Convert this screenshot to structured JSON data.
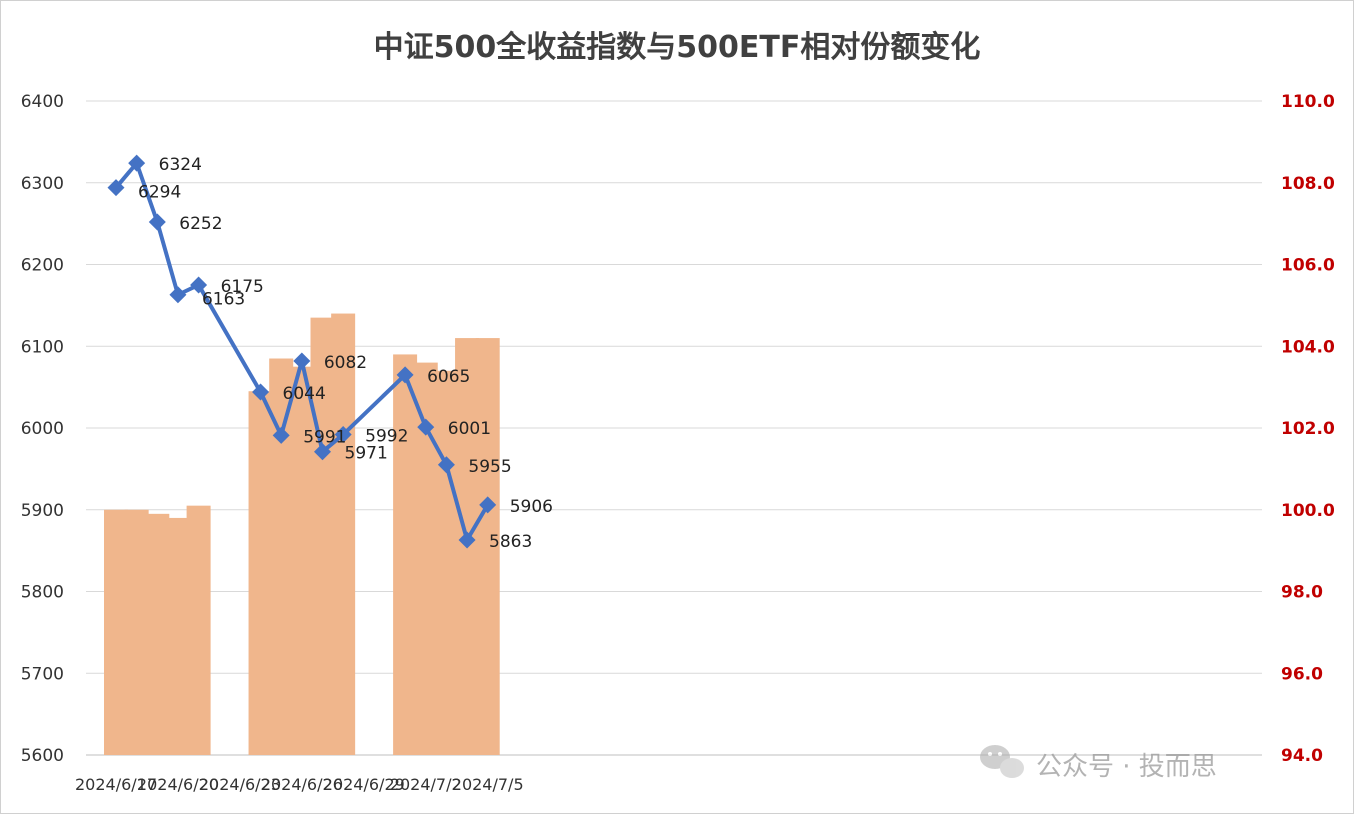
{
  "chart_data": {
    "type": "bar+line",
    "title": "中证500全收益指数与500ETF相对份额变化",
    "x_tick_labels": [
      "2024/6/17",
      "2024/6/20",
      "2024/6/23",
      "2024/6/26",
      "2024/6/29",
      "2024/7/2",
      "2024/7/5"
    ],
    "left_axis": {
      "ylim": [
        5600,
        6400
      ],
      "ticks": [
        5600,
        5700,
        5800,
        5900,
        6000,
        6100,
        6200,
        6300,
        6400
      ]
    },
    "right_axis": {
      "ylim": [
        94.0,
        110.0
      ],
      "ticks": [
        "94.0",
        "96.0",
        "98.0",
        "100.0",
        "102.0",
        "104.0",
        "106.0",
        "108.0",
        "110.0"
      ],
      "color": "#c00000"
    },
    "line_series": {
      "color": "#4472c4",
      "points": [
        {
          "date": "2024/6/17",
          "value": 6294
        },
        {
          "date": "2024/6/18",
          "value": 6324
        },
        {
          "date": "2024/6/19",
          "value": 6252
        },
        {
          "date": "2024/6/20",
          "value": 6163
        },
        {
          "date": "2024/6/21",
          "value": 6175
        },
        {
          "date": "2024/6/24",
          "value": 6044
        },
        {
          "date": "2024/6/25",
          "value": 5991
        },
        {
          "date": "2024/6/26",
          "value": 6082
        },
        {
          "date": "2024/6/27",
          "value": 5971
        },
        {
          "date": "2024/6/28",
          "value": 5992
        },
        {
          "date": "2024/7/1",
          "value": 6065
        },
        {
          "date": "2024/7/2",
          "value": 6001
        },
        {
          "date": "2024/7/3",
          "value": 5955
        },
        {
          "date": "2024/7/4",
          "value": 5863
        },
        {
          "date": "2024/7/5",
          "value": 5906
        }
      ]
    },
    "bar_series": {
      "color": "#f0b68c",
      "points": [
        {
          "date": "2024/6/17",
          "value": 100.0
        },
        {
          "date": "2024/6/18",
          "value": 100.0
        },
        {
          "date": "2024/6/19",
          "value": 99.9
        },
        {
          "date": "2024/6/20",
          "value": 99.8
        },
        {
          "date": "2024/6/21",
          "value": 100.1
        },
        {
          "date": "2024/6/24",
          "value": 102.9
        },
        {
          "date": "2024/6/25",
          "value": 103.7
        },
        {
          "date": "2024/6/26",
          "value": 103.5
        },
        {
          "date": "2024/6/27",
          "value": 104.7
        },
        {
          "date": "2024/6/28",
          "value": 104.8
        },
        {
          "date": "2024/7/1",
          "value": 103.8
        },
        {
          "date": "2024/7/2",
          "value": 103.6
        },
        {
          "date": "2024/7/3",
          "value": 103.4
        },
        {
          "date": "2024/7/4",
          "value": 104.2
        },
        {
          "date": "2024/7/5",
          "value": 104.2
        }
      ]
    },
    "grid": true,
    "legend": "none"
  },
  "watermark": {
    "text": "公众号 · 投而思",
    "icon": "wechat-icon"
  }
}
